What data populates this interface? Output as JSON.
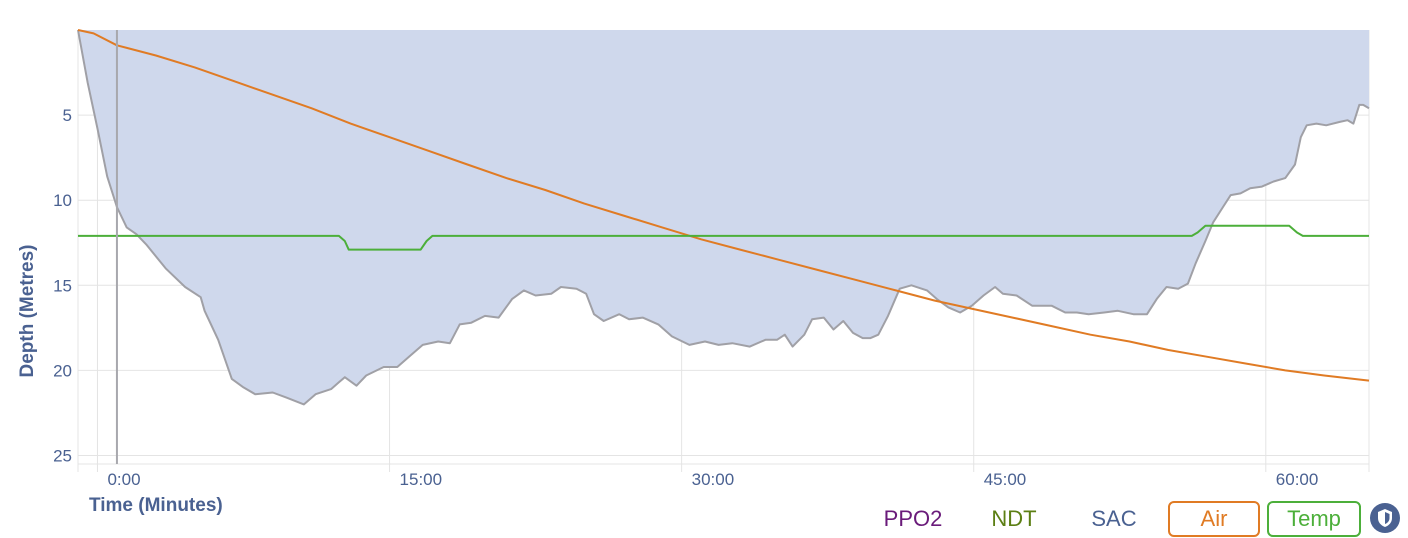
{
  "chart_data": {
    "type": "area",
    "xlabel": "Time (Minutes)",
    "ylabel": "Depth (Metres)",
    "xlim": [
      -1.0,
      65.3
    ],
    "ylim": [
      0,
      25.5
    ],
    "y_inverted": true,
    "x_ticks": [
      0,
      15,
      30,
      45,
      60
    ],
    "x_tick_labels": [
      "0:00",
      "15:00",
      "30:00",
      "45:00",
      "60:00"
    ],
    "y_ticks": [
      5,
      10,
      15,
      20,
      25
    ],
    "y_tick_labels": [
      "5",
      "10",
      "15",
      "20",
      "25"
    ],
    "cursor_x": 1.0,
    "grid": true,
    "series": [
      {
        "name": "Depth",
        "color": "#cfd8ec",
        "stroke": "#a0a0a6",
        "points": [
          [
            -1.0,
            0.0
          ],
          [
            -0.5,
            3.1
          ],
          [
            0.0,
            5.8
          ],
          [
            0.5,
            8.6
          ],
          [
            1.0,
            10.4
          ],
          [
            1.5,
            11.6
          ],
          [
            2.0,
            12.0
          ],
          [
            2.5,
            12.6
          ],
          [
            3.5,
            14.0
          ],
          [
            4.5,
            15.1
          ],
          [
            5.3,
            15.7
          ],
          [
            5.5,
            16.5
          ],
          [
            6.2,
            18.2
          ],
          [
            6.9,
            20.5
          ],
          [
            7.5,
            21.0
          ],
          [
            8.1,
            21.4
          ],
          [
            9.0,
            21.3
          ],
          [
            9.7,
            21.6
          ],
          [
            10.6,
            22.0
          ],
          [
            11.2,
            21.4
          ],
          [
            12.0,
            21.1
          ],
          [
            12.4,
            20.7
          ],
          [
            12.7,
            20.4
          ],
          [
            13.3,
            20.9
          ],
          [
            13.8,
            20.3
          ],
          [
            14.7,
            19.8
          ],
          [
            15.4,
            19.8
          ],
          [
            16.0,
            19.2
          ],
          [
            16.7,
            18.5
          ],
          [
            17.5,
            18.3
          ],
          [
            18.1,
            18.4
          ],
          [
            18.6,
            17.3
          ],
          [
            19.2,
            17.2
          ],
          [
            19.9,
            16.8
          ],
          [
            20.6,
            16.9
          ],
          [
            21.3,
            15.8
          ],
          [
            21.9,
            15.3
          ],
          [
            22.5,
            15.6
          ],
          [
            23.3,
            15.5
          ],
          [
            23.8,
            15.1
          ],
          [
            24.6,
            15.2
          ],
          [
            25.1,
            15.5
          ],
          [
            25.5,
            16.7
          ],
          [
            26.0,
            17.1
          ],
          [
            26.8,
            16.7
          ],
          [
            27.3,
            17.0
          ],
          [
            28.0,
            16.9
          ],
          [
            28.8,
            17.3
          ],
          [
            29.5,
            18.0
          ],
          [
            30.4,
            18.5
          ],
          [
            31.2,
            18.3
          ],
          [
            31.9,
            18.5
          ],
          [
            32.6,
            18.4
          ],
          [
            33.5,
            18.6
          ],
          [
            34.3,
            18.2
          ],
          [
            34.9,
            18.2
          ],
          [
            35.3,
            17.9
          ],
          [
            35.7,
            18.6
          ],
          [
            36.3,
            17.9
          ],
          [
            36.7,
            17.0
          ],
          [
            37.3,
            16.9
          ],
          [
            37.8,
            17.6
          ],
          [
            38.3,
            17.1
          ],
          [
            38.8,
            17.8
          ],
          [
            39.3,
            18.1
          ],
          [
            39.7,
            18.1
          ],
          [
            40.1,
            17.9
          ],
          [
            40.6,
            16.8
          ],
          [
            41.2,
            15.2
          ],
          [
            41.8,
            15.0
          ],
          [
            42.6,
            15.3
          ],
          [
            43.1,
            15.8
          ],
          [
            43.7,
            16.3
          ],
          [
            44.3,
            16.6
          ],
          [
            44.9,
            16.2
          ],
          [
            45.5,
            15.6
          ],
          [
            46.1,
            15.1
          ],
          [
            46.5,
            15.5
          ],
          [
            47.2,
            15.6
          ],
          [
            48.0,
            16.2
          ],
          [
            49.0,
            16.2
          ],
          [
            49.7,
            16.6
          ],
          [
            50.3,
            16.6
          ],
          [
            50.9,
            16.7
          ],
          [
            51.7,
            16.6
          ],
          [
            52.4,
            16.5
          ],
          [
            53.2,
            16.7
          ],
          [
            53.9,
            16.7
          ],
          [
            54.4,
            15.8
          ],
          [
            54.9,
            15.1
          ],
          [
            55.5,
            15.2
          ],
          [
            56.0,
            14.9
          ],
          [
            56.4,
            13.7
          ],
          [
            56.9,
            12.4
          ],
          [
            57.3,
            11.3
          ],
          [
            57.8,
            10.4
          ],
          [
            58.2,
            9.7
          ],
          [
            58.7,
            9.6
          ],
          [
            59.2,
            9.3
          ],
          [
            59.8,
            9.2
          ],
          [
            60.4,
            8.9
          ],
          [
            61.0,
            8.7
          ],
          [
            61.5,
            7.9
          ],
          [
            61.8,
            6.3
          ],
          [
            62.1,
            5.6
          ],
          [
            62.6,
            5.5
          ],
          [
            63.1,
            5.6
          ],
          [
            63.8,
            5.4
          ],
          [
            64.2,
            5.3
          ],
          [
            64.5,
            5.5
          ],
          [
            64.8,
            4.4
          ],
          [
            65.0,
            4.4
          ],
          [
            65.3,
            4.6
          ]
        ]
      },
      {
        "name": "Air",
        "color": "#e07b24",
        "points": [
          [
            -1.0,
            0.0
          ],
          [
            -0.2,
            0.2
          ],
          [
            1.0,
            0.9
          ],
          [
            3.0,
            1.5
          ],
          [
            5.0,
            2.2
          ],
          [
            7.0,
            3.0
          ],
          [
            9.0,
            3.8
          ],
          [
            11.0,
            4.6
          ],
          [
            13.0,
            5.5
          ],
          [
            15.0,
            6.3
          ],
          [
            17.0,
            7.1
          ],
          [
            19.0,
            7.9
          ],
          [
            21.0,
            8.7
          ],
          [
            23.0,
            9.4
          ],
          [
            25.0,
            10.2
          ],
          [
            27.0,
            10.9
          ],
          [
            29.0,
            11.6
          ],
          [
            31.0,
            12.3
          ],
          [
            33.0,
            12.9
          ],
          [
            35.0,
            13.5
          ],
          [
            37.0,
            14.1
          ],
          [
            39.0,
            14.7
          ],
          [
            41.0,
            15.3
          ],
          [
            43.0,
            15.9
          ],
          [
            45.0,
            16.4
          ],
          [
            47.0,
            16.9
          ],
          [
            49.0,
            17.4
          ],
          [
            51.0,
            17.9
          ],
          [
            53.0,
            18.3
          ],
          [
            55.0,
            18.8
          ],
          [
            57.0,
            19.2
          ],
          [
            59.0,
            19.6
          ],
          [
            61.0,
            20.0
          ],
          [
            63.0,
            20.3
          ],
          [
            65.3,
            20.6
          ]
        ]
      },
      {
        "name": "Temp",
        "color": "#4caf3a",
        "points": [
          [
            -1.0,
            12.1
          ],
          [
            12.4,
            12.1
          ],
          [
            12.7,
            12.4
          ],
          [
            12.9,
            12.9
          ],
          [
            16.6,
            12.9
          ],
          [
            16.9,
            12.4
          ],
          [
            17.2,
            12.1
          ],
          [
            56.2,
            12.1
          ],
          [
            56.5,
            11.9
          ],
          [
            56.9,
            11.5
          ],
          [
            61.2,
            11.5
          ],
          [
            61.6,
            11.9
          ],
          [
            61.9,
            12.1
          ],
          [
            65.3,
            12.1
          ]
        ]
      }
    ]
  },
  "legend": [
    {
      "label": "PPO2",
      "color": "#6a1b7a",
      "boxed": false
    },
    {
      "label": "NDT",
      "color": "#5c7f14",
      "boxed": false
    },
    {
      "label": "SAC",
      "color": "#4a6191",
      "boxed": false
    },
    {
      "label": "Air",
      "color": "#e07b24",
      "boxed": true
    },
    {
      "label": "Temp",
      "color": "#4caf3a",
      "boxed": true
    }
  ],
  "shield_icon": "shield-icon"
}
